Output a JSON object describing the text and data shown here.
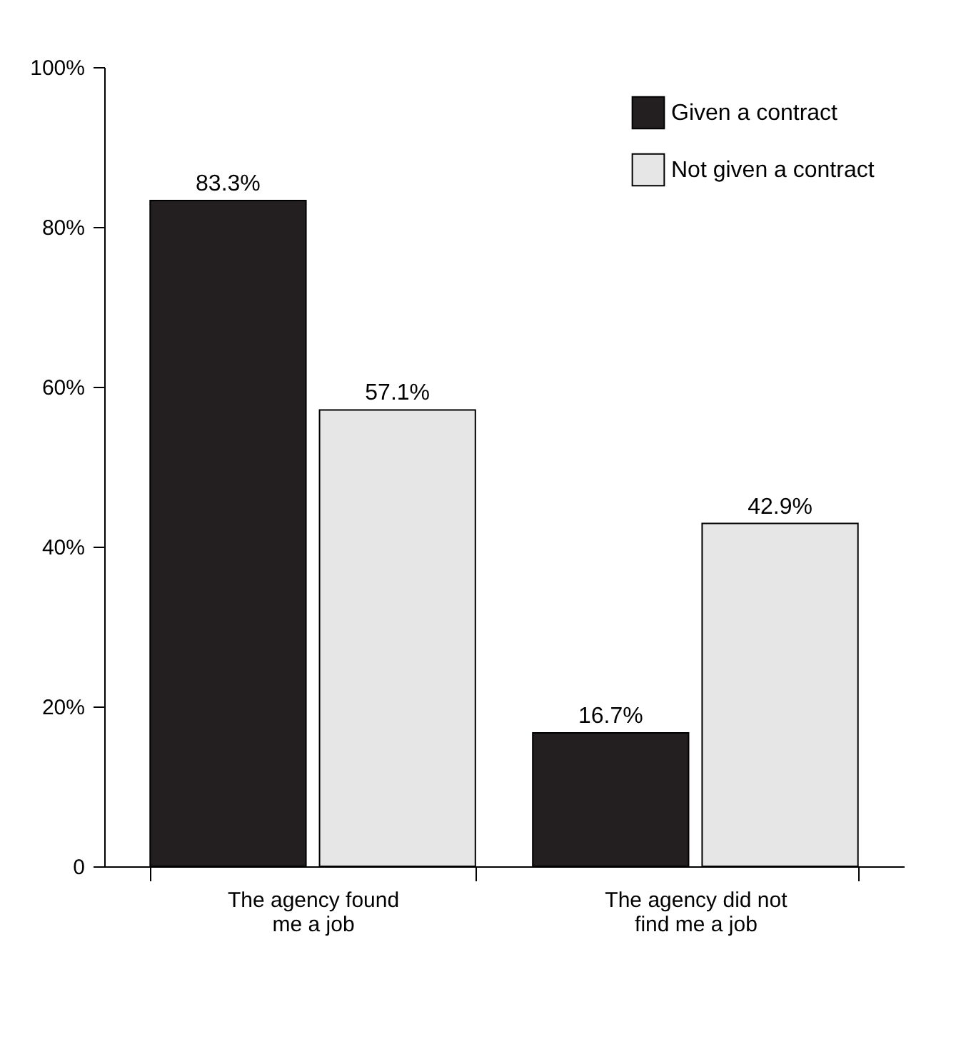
{
  "chart_data": {
    "type": "bar",
    "categories": [
      "The agency found\nme a job",
      "The agency did not\nfind me a job"
    ],
    "series": [
      {
        "name": "Given a contract",
        "color": "#231f20",
        "values": [
          83.3,
          16.7
        ]
      },
      {
        "name": "Not given a contract",
        "color": "#e6e6e6",
        "values": [
          57.1,
          42.9
        ]
      }
    ],
    "ylim": [
      0,
      100
    ],
    "yticks": [
      0,
      {
        "value": 20,
        "label": "20%"
      },
      {
        "value": 40,
        "label": "40%"
      },
      {
        "value": 60,
        "label": "60%"
      },
      {
        "value": 80,
        "label": "80%"
      },
      {
        "value": 100,
        "label": "100%"
      }
    ],
    "value_labels": [
      [
        "83.3%",
        "16.7%"
      ],
      [
        "57.1%",
        "42.9%"
      ]
    ],
    "legend": "top right",
    "grid": false
  }
}
